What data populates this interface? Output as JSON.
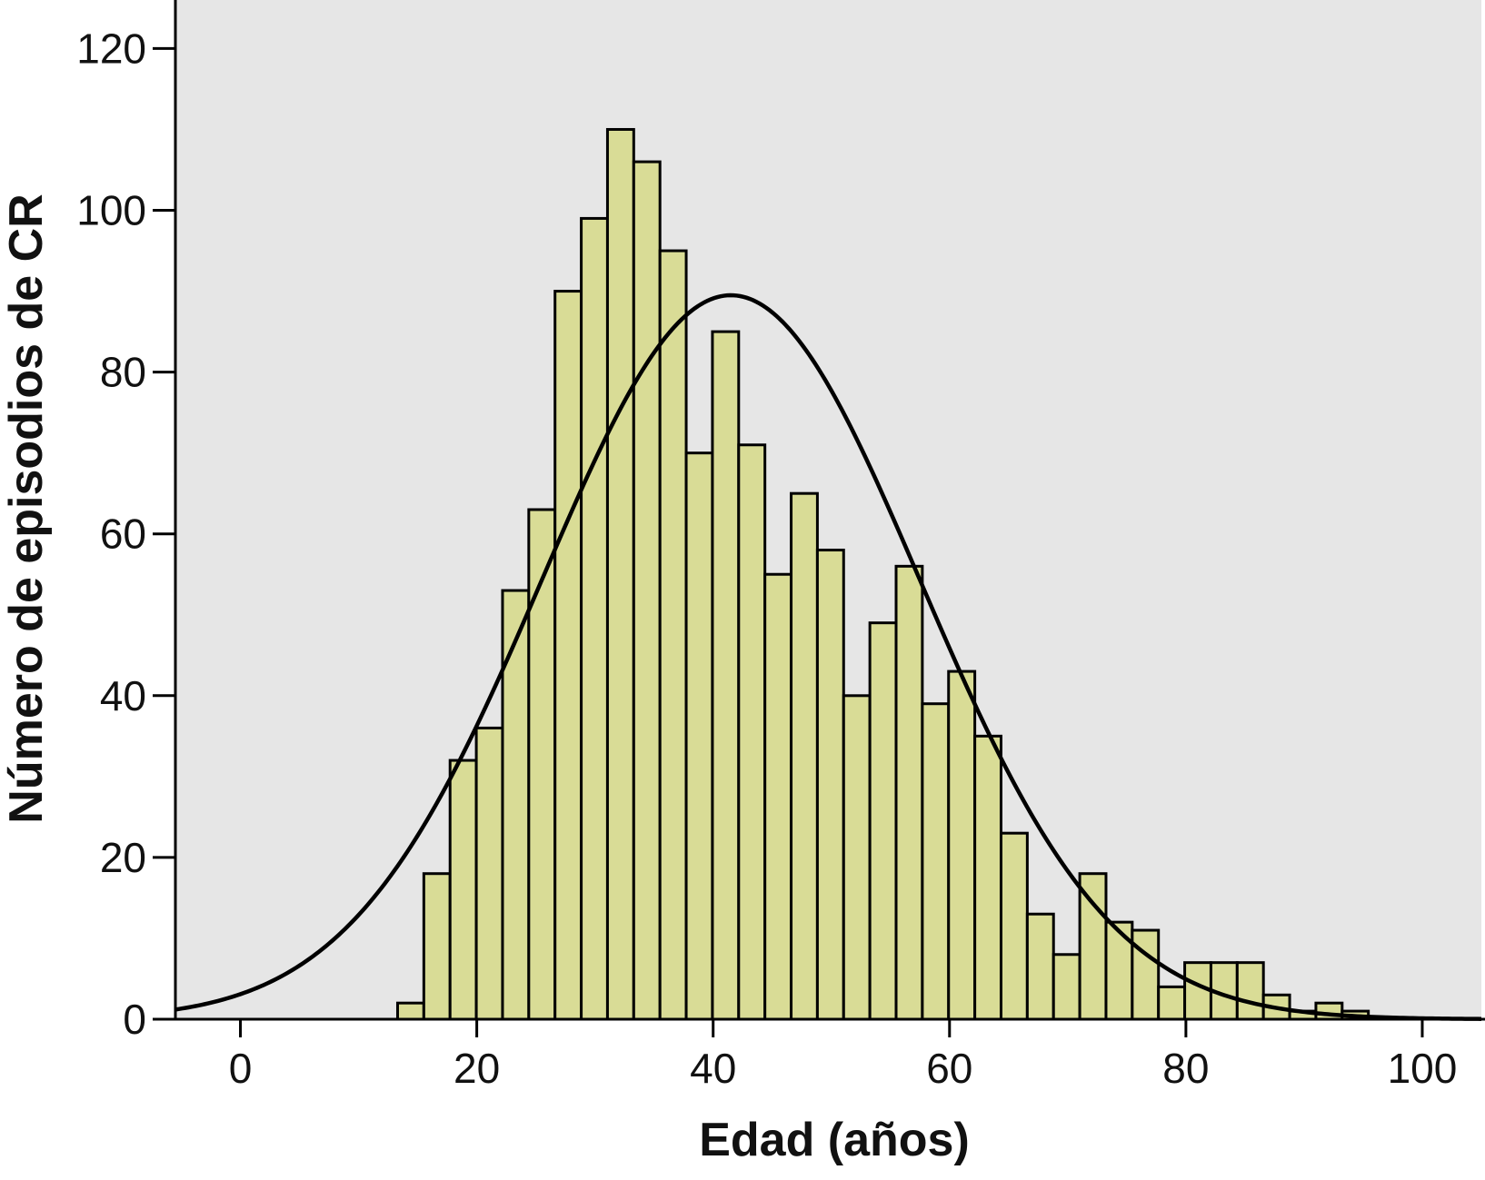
{
  "chart_data": {
    "type": "bar",
    "title": "",
    "xlabel": "Edad (años)",
    "ylabel": "Número de episodios de CR",
    "xlim": [
      -5.5,
      105
    ],
    "ylim": [
      0,
      126
    ],
    "xticks": [
      0,
      20,
      40,
      60,
      80,
      100
    ],
    "yticks": [
      0,
      20,
      40,
      60,
      80,
      100,
      120
    ],
    "bin_width": 2.22,
    "grid": false,
    "legend": "none",
    "bins": [
      {
        "start": 13.3,
        "value": 2
      },
      {
        "start": 15.52,
        "value": 18
      },
      {
        "start": 17.74,
        "value": 32
      },
      {
        "start": 19.96,
        "value": 36
      },
      {
        "start": 22.18,
        "value": 53
      },
      {
        "start": 24.4,
        "value": 63
      },
      {
        "start": 26.62,
        "value": 90
      },
      {
        "start": 28.84,
        "value": 99
      },
      {
        "start": 31.06,
        "value": 110
      },
      {
        "start": 33.28,
        "value": 106
      },
      {
        "start": 35.5,
        "value": 95
      },
      {
        "start": 37.72,
        "value": 70
      },
      {
        "start": 39.94,
        "value": 85
      },
      {
        "start": 42.16,
        "value": 71
      },
      {
        "start": 44.38,
        "value": 55
      },
      {
        "start": 46.6,
        "value": 65
      },
      {
        "start": 48.82,
        "value": 58
      },
      {
        "start": 51.04,
        "value": 40
      },
      {
        "start": 53.26,
        "value": 49
      },
      {
        "start": 55.48,
        "value": 56
      },
      {
        "start": 57.7,
        "value": 39
      },
      {
        "start": 59.92,
        "value": 43
      },
      {
        "start": 62.14,
        "value": 35
      },
      {
        "start": 64.36,
        "value": 23
      },
      {
        "start": 66.58,
        "value": 13
      },
      {
        "start": 68.8,
        "value": 8
      },
      {
        "start": 71.02,
        "value": 18
      },
      {
        "start": 73.24,
        "value": 12
      },
      {
        "start": 75.46,
        "value": 11
      },
      {
        "start": 77.68,
        "value": 4
      },
      {
        "start": 79.9,
        "value": 7
      },
      {
        "start": 82.12,
        "value": 7
      },
      {
        "start": 84.34,
        "value": 7
      },
      {
        "start": 86.56,
        "value": 3
      },
      {
        "start": 88.78,
        "value": 1
      },
      {
        "start": 91.0,
        "value": 2
      },
      {
        "start": 93.22,
        "value": 1
      }
    ],
    "normal_curve": {
      "mean": 41.5,
      "sd": 16.0,
      "peak": 89.5
    },
    "colors": {
      "plot_background": "#e6e6e6",
      "bar_fill": "#d9dc96",
      "bar_stroke": "#000000",
      "curve": "#000000"
    }
  }
}
